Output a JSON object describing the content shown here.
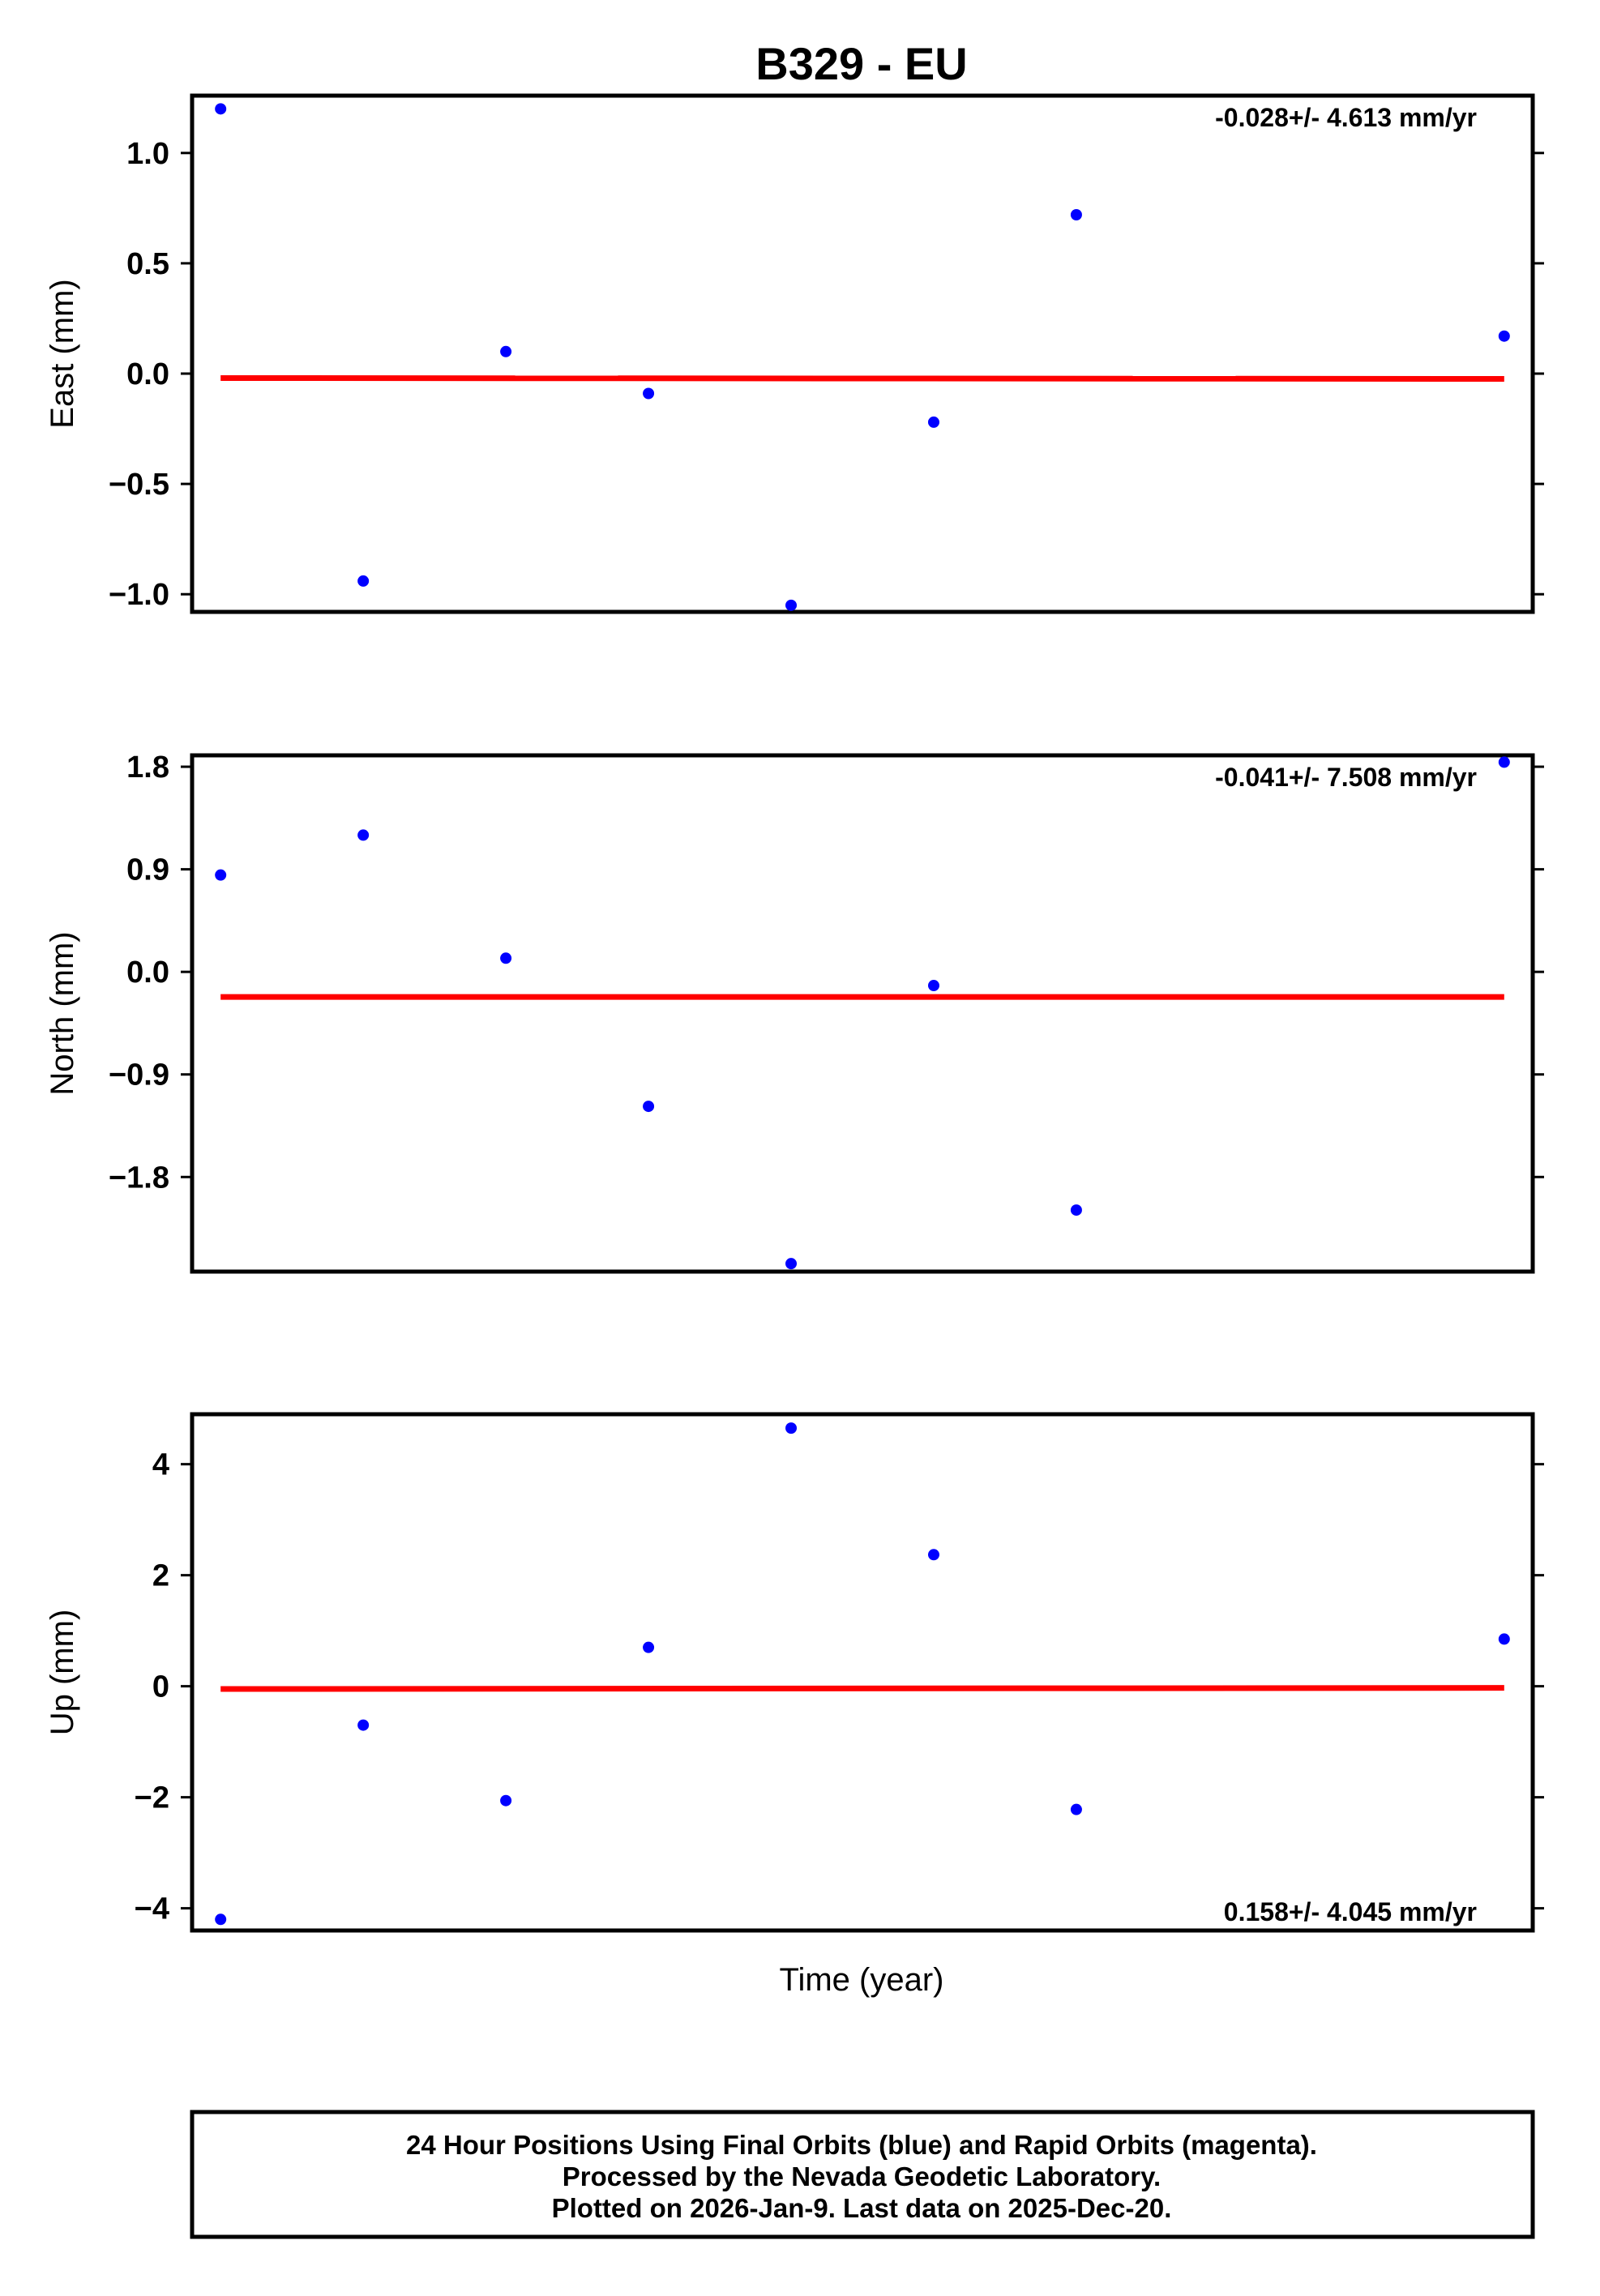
{
  "chart_data": {
    "type": "scatter",
    "title": "B329 - EU",
    "xlabel": "Time (year)",
    "x": [
      1,
      2,
      3,
      4,
      5,
      6,
      7,
      8,
      9,
      10
    ],
    "colors": {
      "points": "#0000ff",
      "trend": "#ff0000",
      "frame": "#000000"
    },
    "panels": [
      {
        "id": "east",
        "ylabel": "East (mm)",
        "ylim": [
          -1.08,
          1.26
        ],
        "yticks": [
          1.0,
          0.5,
          0.0,
          -0.5,
          -1.0
        ],
        "ytick_labels": [
          "1.0",
          "0.5",
          "0.0",
          "−0.5",
          "−1.0"
        ],
        "rate_label": "-0.028+/- 4.613 mm/yr",
        "rate_position": "top-right",
        "y": [
          1.2,
          -0.94,
          0.1,
          -0.09,
          -1.05,
          -0.22,
          0.72,
          null,
          null,
          0.17
        ],
        "trend": [
          -0.02,
          -0.024
        ]
      },
      {
        "id": "north",
        "ylabel": "North (mm)",
        "ylim": [
          -2.63,
          1.9
        ],
        "yticks": [
          1.8,
          0.9,
          0.0,
          -0.9,
          -1.8
        ],
        "ytick_labels": [
          "1.8",
          "0.9",
          "0.0",
          "−0.9",
          "−1.8"
        ],
        "rate_label": "-0.041+/- 7.508 mm/yr",
        "rate_position": "top-right",
        "y": [
          0.85,
          1.2,
          0.12,
          -1.18,
          -2.56,
          -0.12,
          -2.09,
          null,
          null,
          1.84
        ],
        "trend": [
          -0.22,
          -0.22
        ]
      },
      {
        "id": "up",
        "ylabel": "Up (mm)",
        "ylim": [
          -4.4,
          4.9
        ],
        "yticks": [
          4,
          2,
          0,
          -2,
          -4
        ],
        "ytick_labels": [
          "4",
          "2",
          "0",
          "−2",
          "−4"
        ],
        "rate_label": "0.158+/- 4.045 mm/yr",
        "rate_position": "bottom-right",
        "y": [
          -4.2,
          -0.7,
          -2.06,
          0.7,
          4.65,
          2.37,
          -2.22,
          null,
          null,
          0.85
        ],
        "trend": [
          -0.05,
          -0.03
        ]
      }
    ]
  },
  "footer": {
    "line1": "24 Hour Positions Using Final Orbits (blue) and Rapid Orbits (magenta).",
    "line2": "Processed by the Nevada Geodetic Laboratory.",
    "line3": "Plotted on 2026-Jan-9. Last data on 2025-Dec-20."
  }
}
